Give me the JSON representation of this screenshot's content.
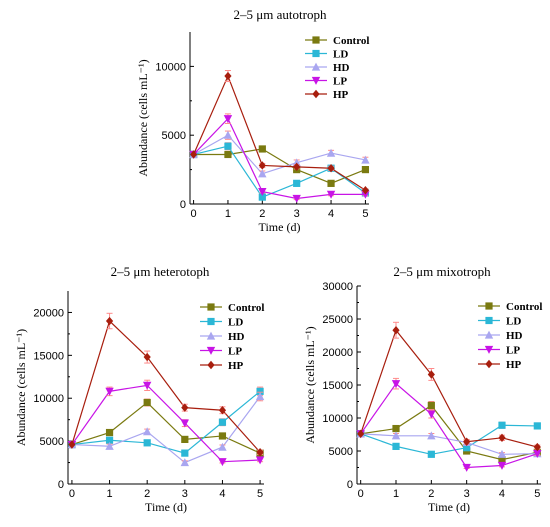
{
  "colors": {
    "Control": "#7a7a10",
    "LD": "#2bb7d6",
    "HD": "#a9a6f0",
    "LP": "#c814e6",
    "HP": "#a81e0e",
    "errorbar": "#ff8a8a"
  },
  "markers": {
    "Control": "square",
    "LD": "square",
    "HD": "triangle-up",
    "LP": "triangle-down",
    "HP": "diamond"
  },
  "chart_data": [
    {
      "type": "line",
      "title": "2–5 μm autotroph",
      "xlabel": "Time (d)",
      "ylabel": "Abundance (cells mL⁻¹)",
      "x": [
        0,
        1,
        2,
        3,
        4,
        5
      ],
      "xticks": [
        "0",
        "1",
        "2",
        "3",
        "4",
        "5"
      ],
      "ylim": [
        0,
        12500
      ],
      "yticks": [
        0,
        5000,
        10000
      ],
      "ytick_labels": [
        "0",
        "5000",
        "10000"
      ],
      "legend": "top-right",
      "series": [
        {
          "name": "Control",
          "values": [
            3600,
            3600,
            4000,
            2500,
            1500,
            2500
          ],
          "err": [
            0,
            150,
            150,
            150,
            150,
            150
          ]
        },
        {
          "name": "LD",
          "values": [
            3600,
            4200,
            500,
            1500,
            2600,
            800
          ],
          "err": [
            0,
            250,
            150,
            150,
            200,
            100
          ]
        },
        {
          "name": "HD",
          "values": [
            3600,
            5000,
            2200,
            3000,
            3700,
            3200
          ],
          "err": [
            0,
            300,
            200,
            200,
            200,
            200
          ]
        },
        {
          "name": "LP",
          "values": [
            3600,
            6200,
            900,
            400,
            700,
            700
          ],
          "err": [
            0,
            350,
            100,
            80,
            100,
            100
          ]
        },
        {
          "name": "HP",
          "values": [
            3600,
            9300,
            2800,
            2700,
            2600,
            1000
          ],
          "err": [
            0,
            400,
            150,
            150,
            150,
            100
          ]
        }
      ]
    },
    {
      "type": "line",
      "title": "2–5 μm heterotoph",
      "xlabel": "Time (d)",
      "ylabel": "Abundance (cells mL⁻¹)",
      "x": [
        0,
        1,
        2,
        3,
        4,
        5
      ],
      "xticks": [
        "0",
        "1",
        "2",
        "3",
        "4",
        "5"
      ],
      "ylim": [
        0,
        22500
      ],
      "yticks": [
        0,
        5000,
        10000,
        15000,
        20000
      ],
      "ytick_labels": [
        "0",
        "5000",
        "10000",
        "15000",
        "20000"
      ],
      "legend": "top-right",
      "series": [
        {
          "name": "Control",
          "values": [
            4600,
            6000,
            9500,
            5200,
            5600,
            3600
          ],
          "err": [
            0,
            300,
            400,
            300,
            300,
            200
          ]
        },
        {
          "name": "LD",
          "values": [
            4600,
            5100,
            4800,
            3600,
            7200,
            10800
          ],
          "err": [
            0,
            300,
            300,
            200,
            400,
            500
          ]
        },
        {
          "name": "HD",
          "values": [
            4600,
            4400,
            6100,
            2500,
            4300,
            10200
          ],
          "err": [
            0,
            250,
            300,
            200,
            250,
            500
          ]
        },
        {
          "name": "LP",
          "values": [
            4600,
            10800,
            11500,
            7100,
            2600,
            2800
          ],
          "err": [
            0,
            500,
            600,
            400,
            150,
            200
          ]
        },
        {
          "name": "HP",
          "values": [
            4600,
            19000,
            14800,
            8900,
            8600,
            3700
          ],
          "err": [
            0,
            900,
            700,
            400,
            400,
            250
          ]
        }
      ]
    },
    {
      "type": "line",
      "title": "2–5 μm mixotroph",
      "xlabel": "Time (d)",
      "ylabel": "Abundance (cells mL⁻¹)",
      "x": [
        0,
        1,
        2,
        3,
        4,
        5
      ],
      "xticks": [
        "0",
        "1",
        "2",
        "3",
        "4",
        "5"
      ],
      "ylim": [
        0,
        30000
      ],
      "yticks": [
        0,
        5000,
        10000,
        15000,
        20000,
        25000,
        30000
      ],
      "ytick_labels": [
        "0",
        "5000",
        "10000",
        "15000",
        "20000",
        "25000",
        "30000"
      ],
      "legend": "top-right",
      "series": [
        {
          "name": "Control",
          "values": [
            7600,
            8400,
            11900,
            5000,
            3700,
            4800
          ],
          "err": [
            0,
            400,
            600,
            300,
            250,
            250
          ]
        },
        {
          "name": "LD",
          "values": [
            7600,
            5700,
            4500,
            5500,
            8900,
            8800
          ],
          "err": [
            0,
            300,
            250,
            300,
            450,
            450
          ]
        },
        {
          "name": "HD",
          "values": [
            7600,
            7300,
            7300,
            6300,
            4500,
            4600
          ],
          "err": [
            0,
            350,
            350,
            350,
            250,
            250
          ]
        },
        {
          "name": "LP",
          "values": [
            7600,
            15200,
            10600,
            2500,
            2800,
            4600
          ],
          "err": [
            0,
            800,
            600,
            150,
            200,
            250
          ]
        },
        {
          "name": "HP",
          "values": [
            7600,
            23300,
            16600,
            6400,
            7000,
            5600
          ],
          "err": [
            0,
            1200,
            900,
            350,
            400,
            300
          ]
        }
      ]
    }
  ]
}
